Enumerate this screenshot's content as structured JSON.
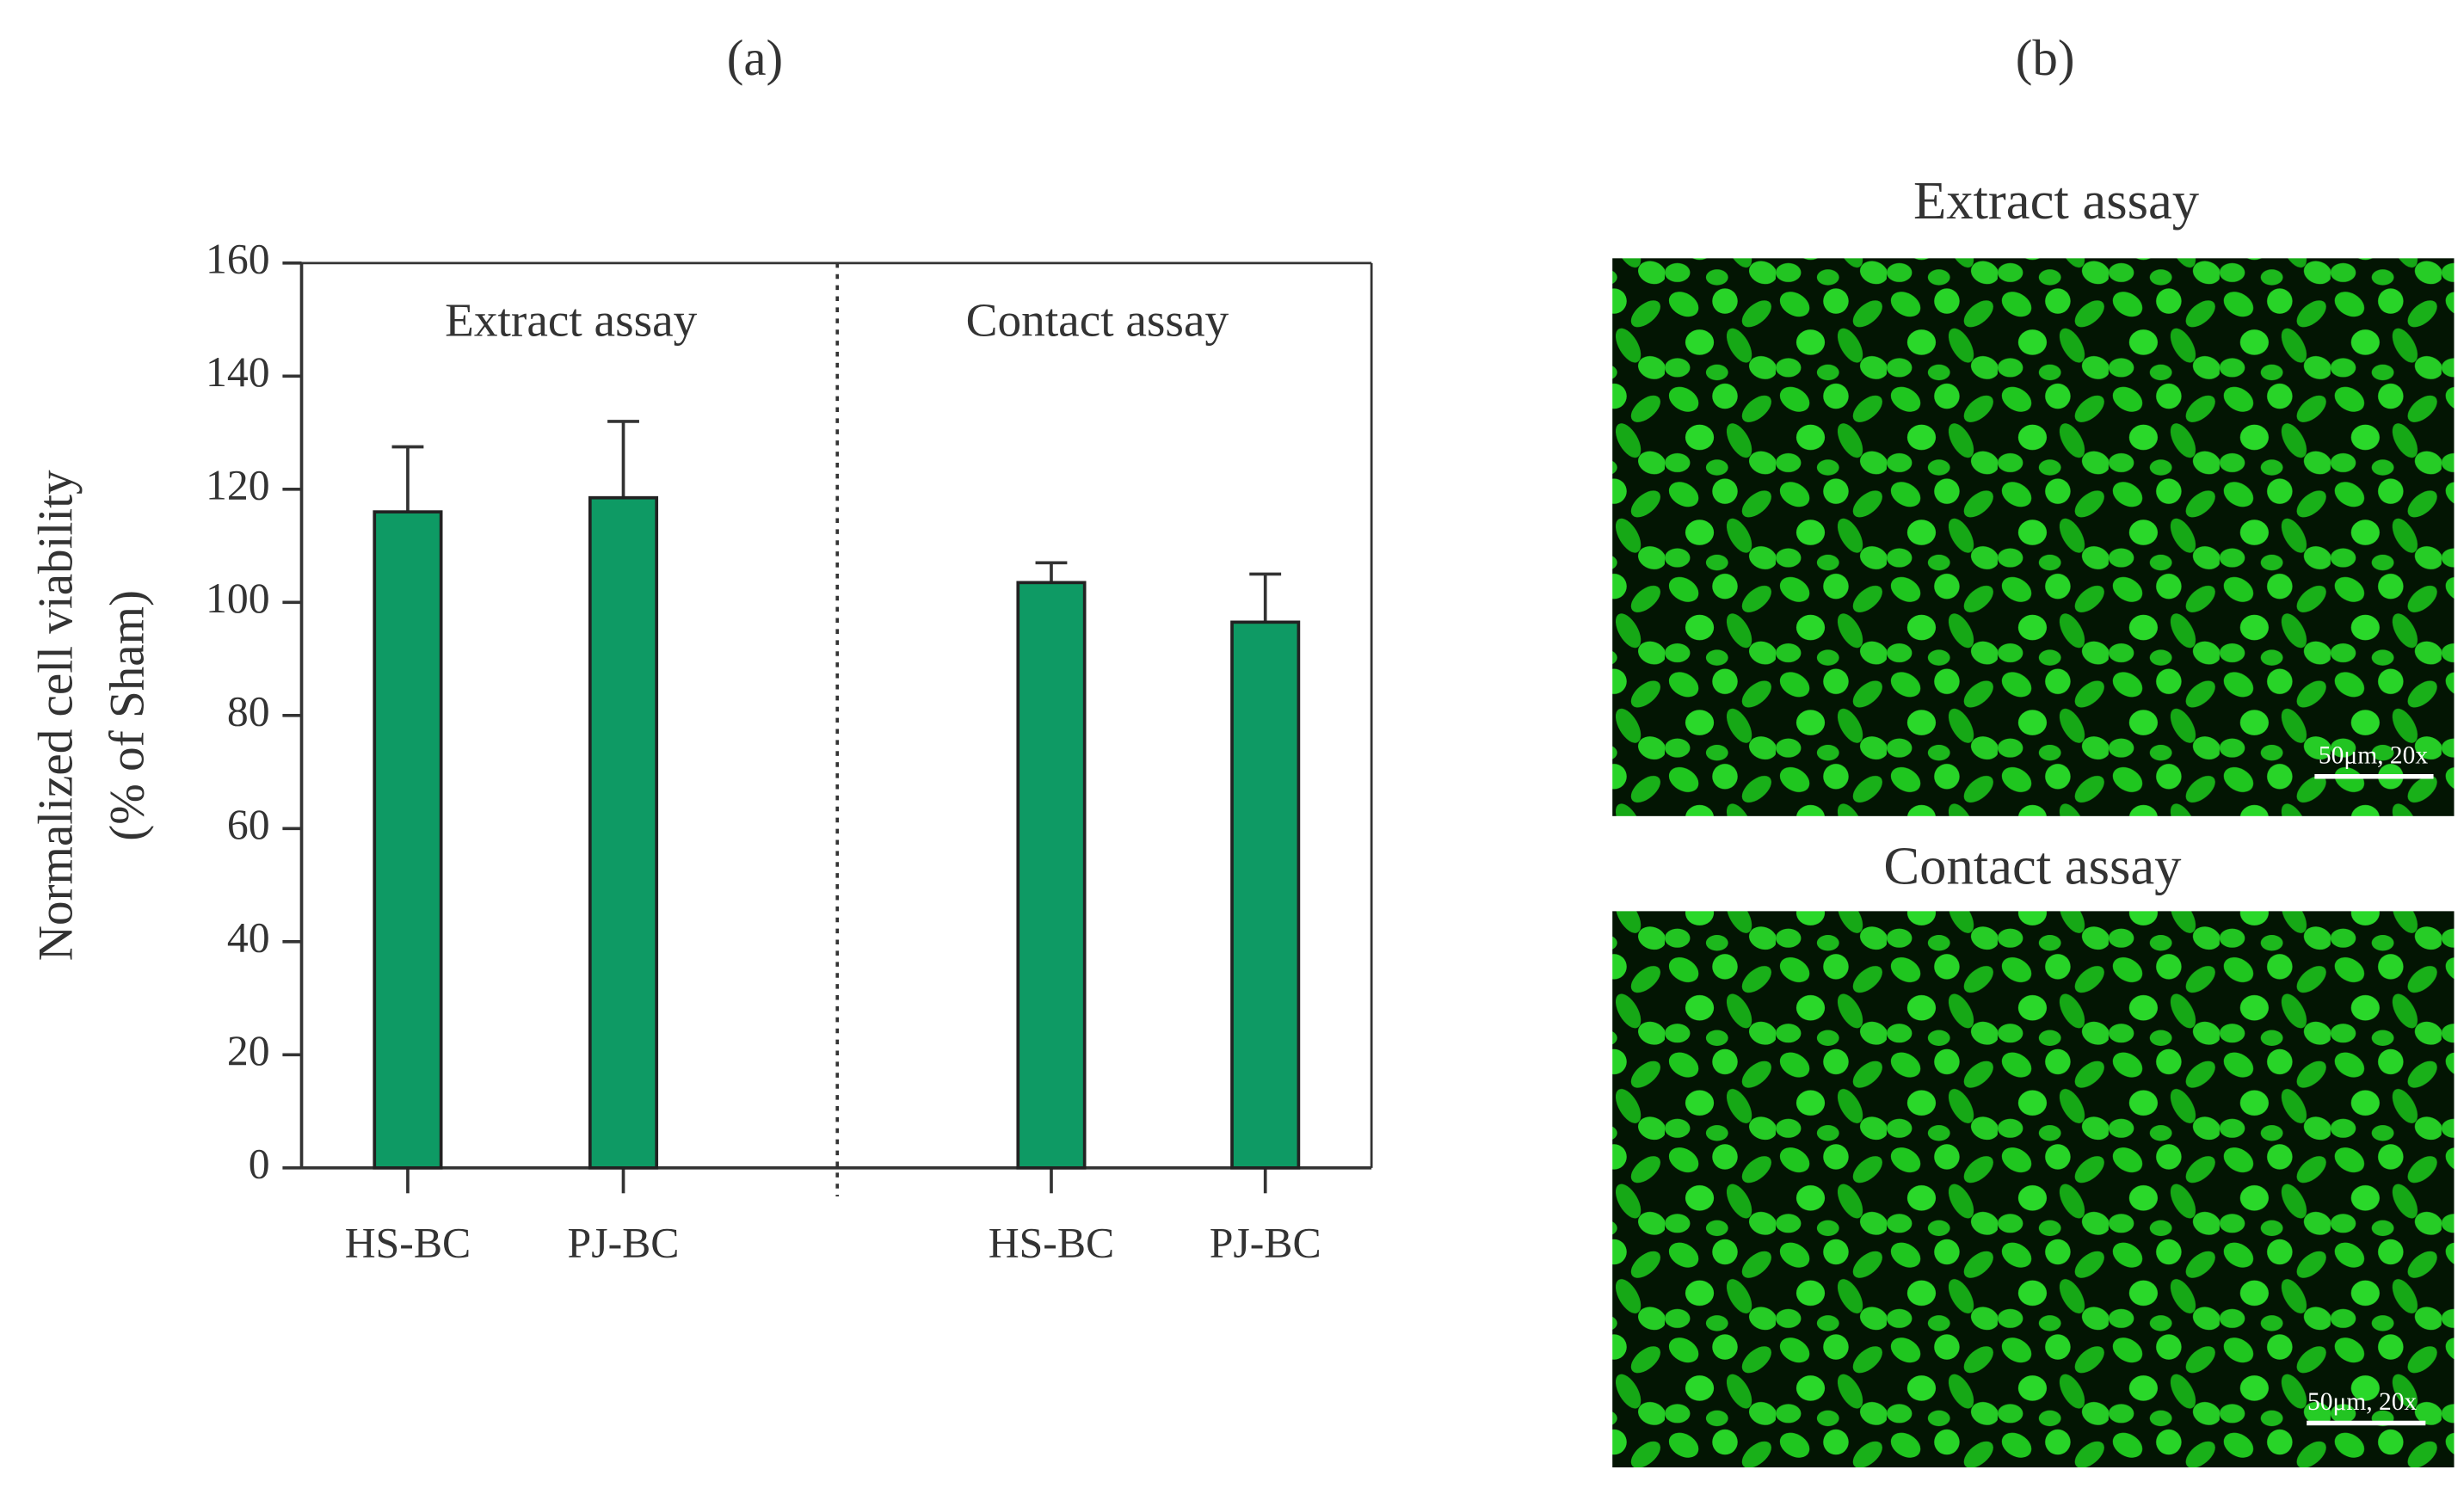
{
  "chart_data": {
    "type": "bar",
    "panel_label": "(a)",
    "ylabel": [
      "Normalized cell viability",
      "(% of Sham)"
    ],
    "categories": [
      "HS-BC",
      "PJ-BC",
      "HS-BC",
      "PJ-BC"
    ],
    "values": [
      116,
      118.5,
      103.5,
      96.5
    ],
    "errors": [
      11.5,
      13.5,
      3.5,
      8.5
    ],
    "color": "#0e9a64",
    "groups": [
      "Extract assay",
      "Contact assay"
    ],
    "ylim": [
      0,
      160
    ],
    "yticks": [
      0,
      20,
      40,
      60,
      80,
      100,
      120,
      140,
      160
    ]
  },
  "panel_b": {
    "label": "(b)",
    "images": [
      {
        "title": "Extract assay",
        "scale_bar": "50μm, 20x"
      },
      {
        "title": "Contact assay",
        "scale_bar": "50μm, 20x"
      }
    ]
  }
}
